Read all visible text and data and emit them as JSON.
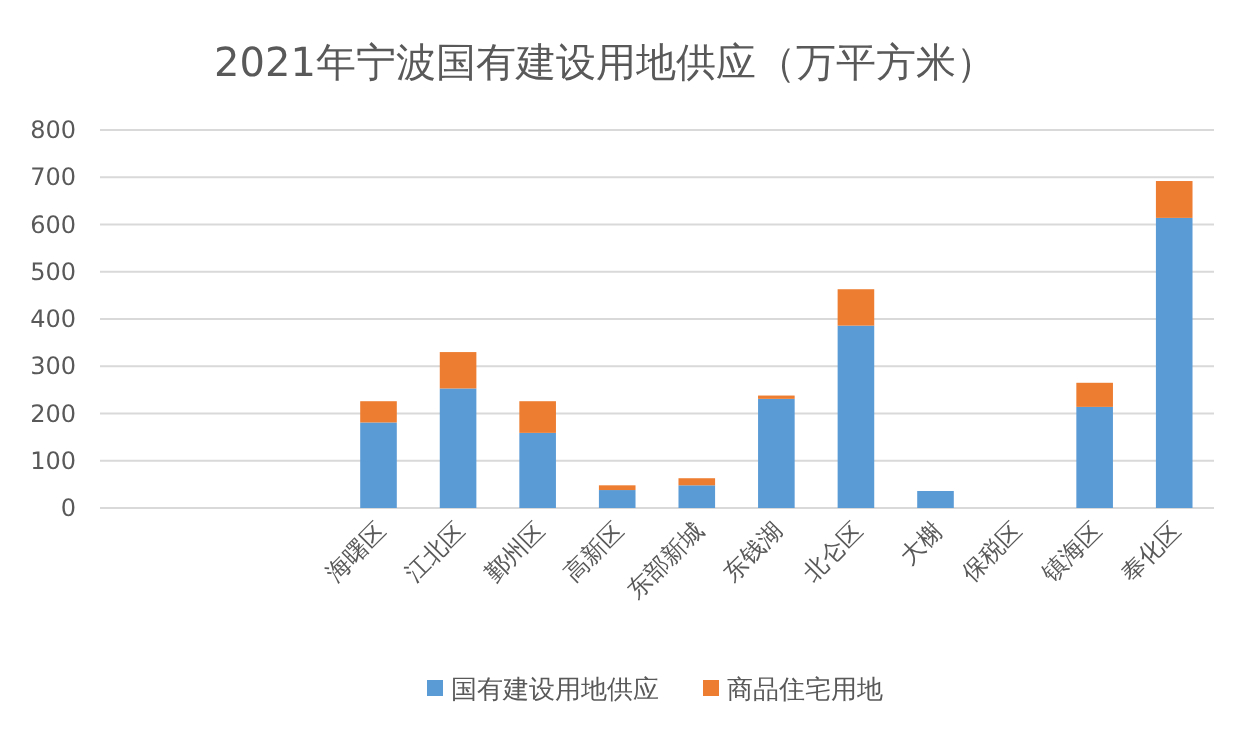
{
  "chart_data": {
    "type": "bar",
    "title": "2021年宁波国有建设用地供应（万平方米）",
    "stacked": true,
    "categories": [
      null,
      null,
      null,
      "海曙区",
      "江北区",
      "鄞州区",
      "高新区",
      "东部新城",
      "东钱湖",
      "北仑区",
      "大榭",
      "保税区",
      "镇海区",
      "奉化区"
    ],
    "series": [
      {
        "name": "国有建设用地供应",
        "color": "#5b9bd5",
        "values": [
          null,
          null,
          null,
          181,
          253,
          159,
          38,
          48,
          231,
          386,
          36,
          null,
          214,
          614
        ]
      },
      {
        "name": "商品住宅用地",
        "color": "#ed7d31",
        "values": [
          null,
          null,
          null,
          45,
          77,
          67,
          10,
          15,
          7,
          77,
          null,
          null,
          51,
          78
        ]
      }
    ],
    "ylim": [
      0,
      800
    ],
    "yticks": [
      0,
      100,
      200,
      300,
      400,
      500,
      600,
      700,
      800
    ],
    "grid": "y",
    "legend": "bottom"
  }
}
